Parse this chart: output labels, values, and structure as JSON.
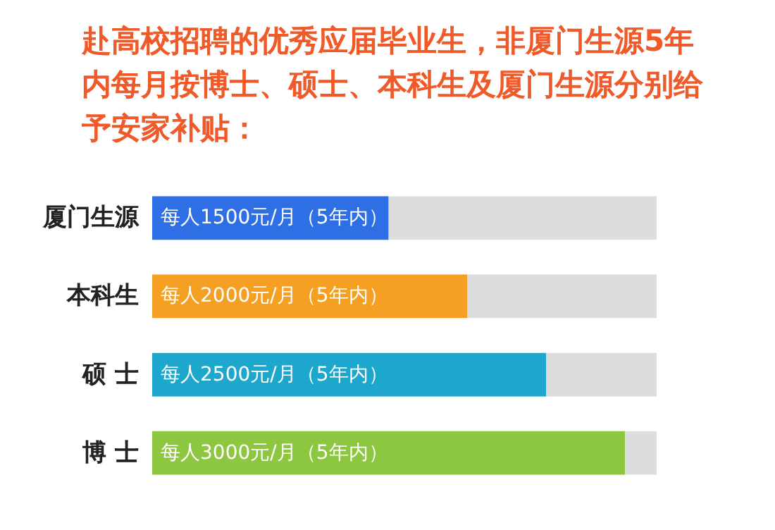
{
  "chart_data": {
    "type": "bar",
    "orientation": "horizontal",
    "stacked": true,
    "tick_labels": "y",
    "xlim": [
      0,
      3200
    ],
    "title": "赴高校招聘的优秀应届毕业生，非厦门生源5年内每月按博士、硕士、本科生及厦门生源分别给予安家补贴：",
    "categories": [
      "厦门生源",
      "本科生",
      "硕 士",
      "博 士"
    ],
    "series": [
      {
        "colors": [
          "#2f6fe6",
          "#f5a023",
          "#1ea7cc",
          "#8dc63f"
        ],
        "values": [
          1500,
          2000,
          2500,
          3000
        ],
        "value_labels": [
          "每人1500元/月（5年内）",
          "每人2000元/月（5年内）",
          "每人2500元/月（5年内）",
          "每人3000元/月（5年内）"
        ]
      },
      {
        "color": "#dddddd",
        "values": [
          1700,
          1200,
          700,
          200
        ]
      }
    ]
  }
}
